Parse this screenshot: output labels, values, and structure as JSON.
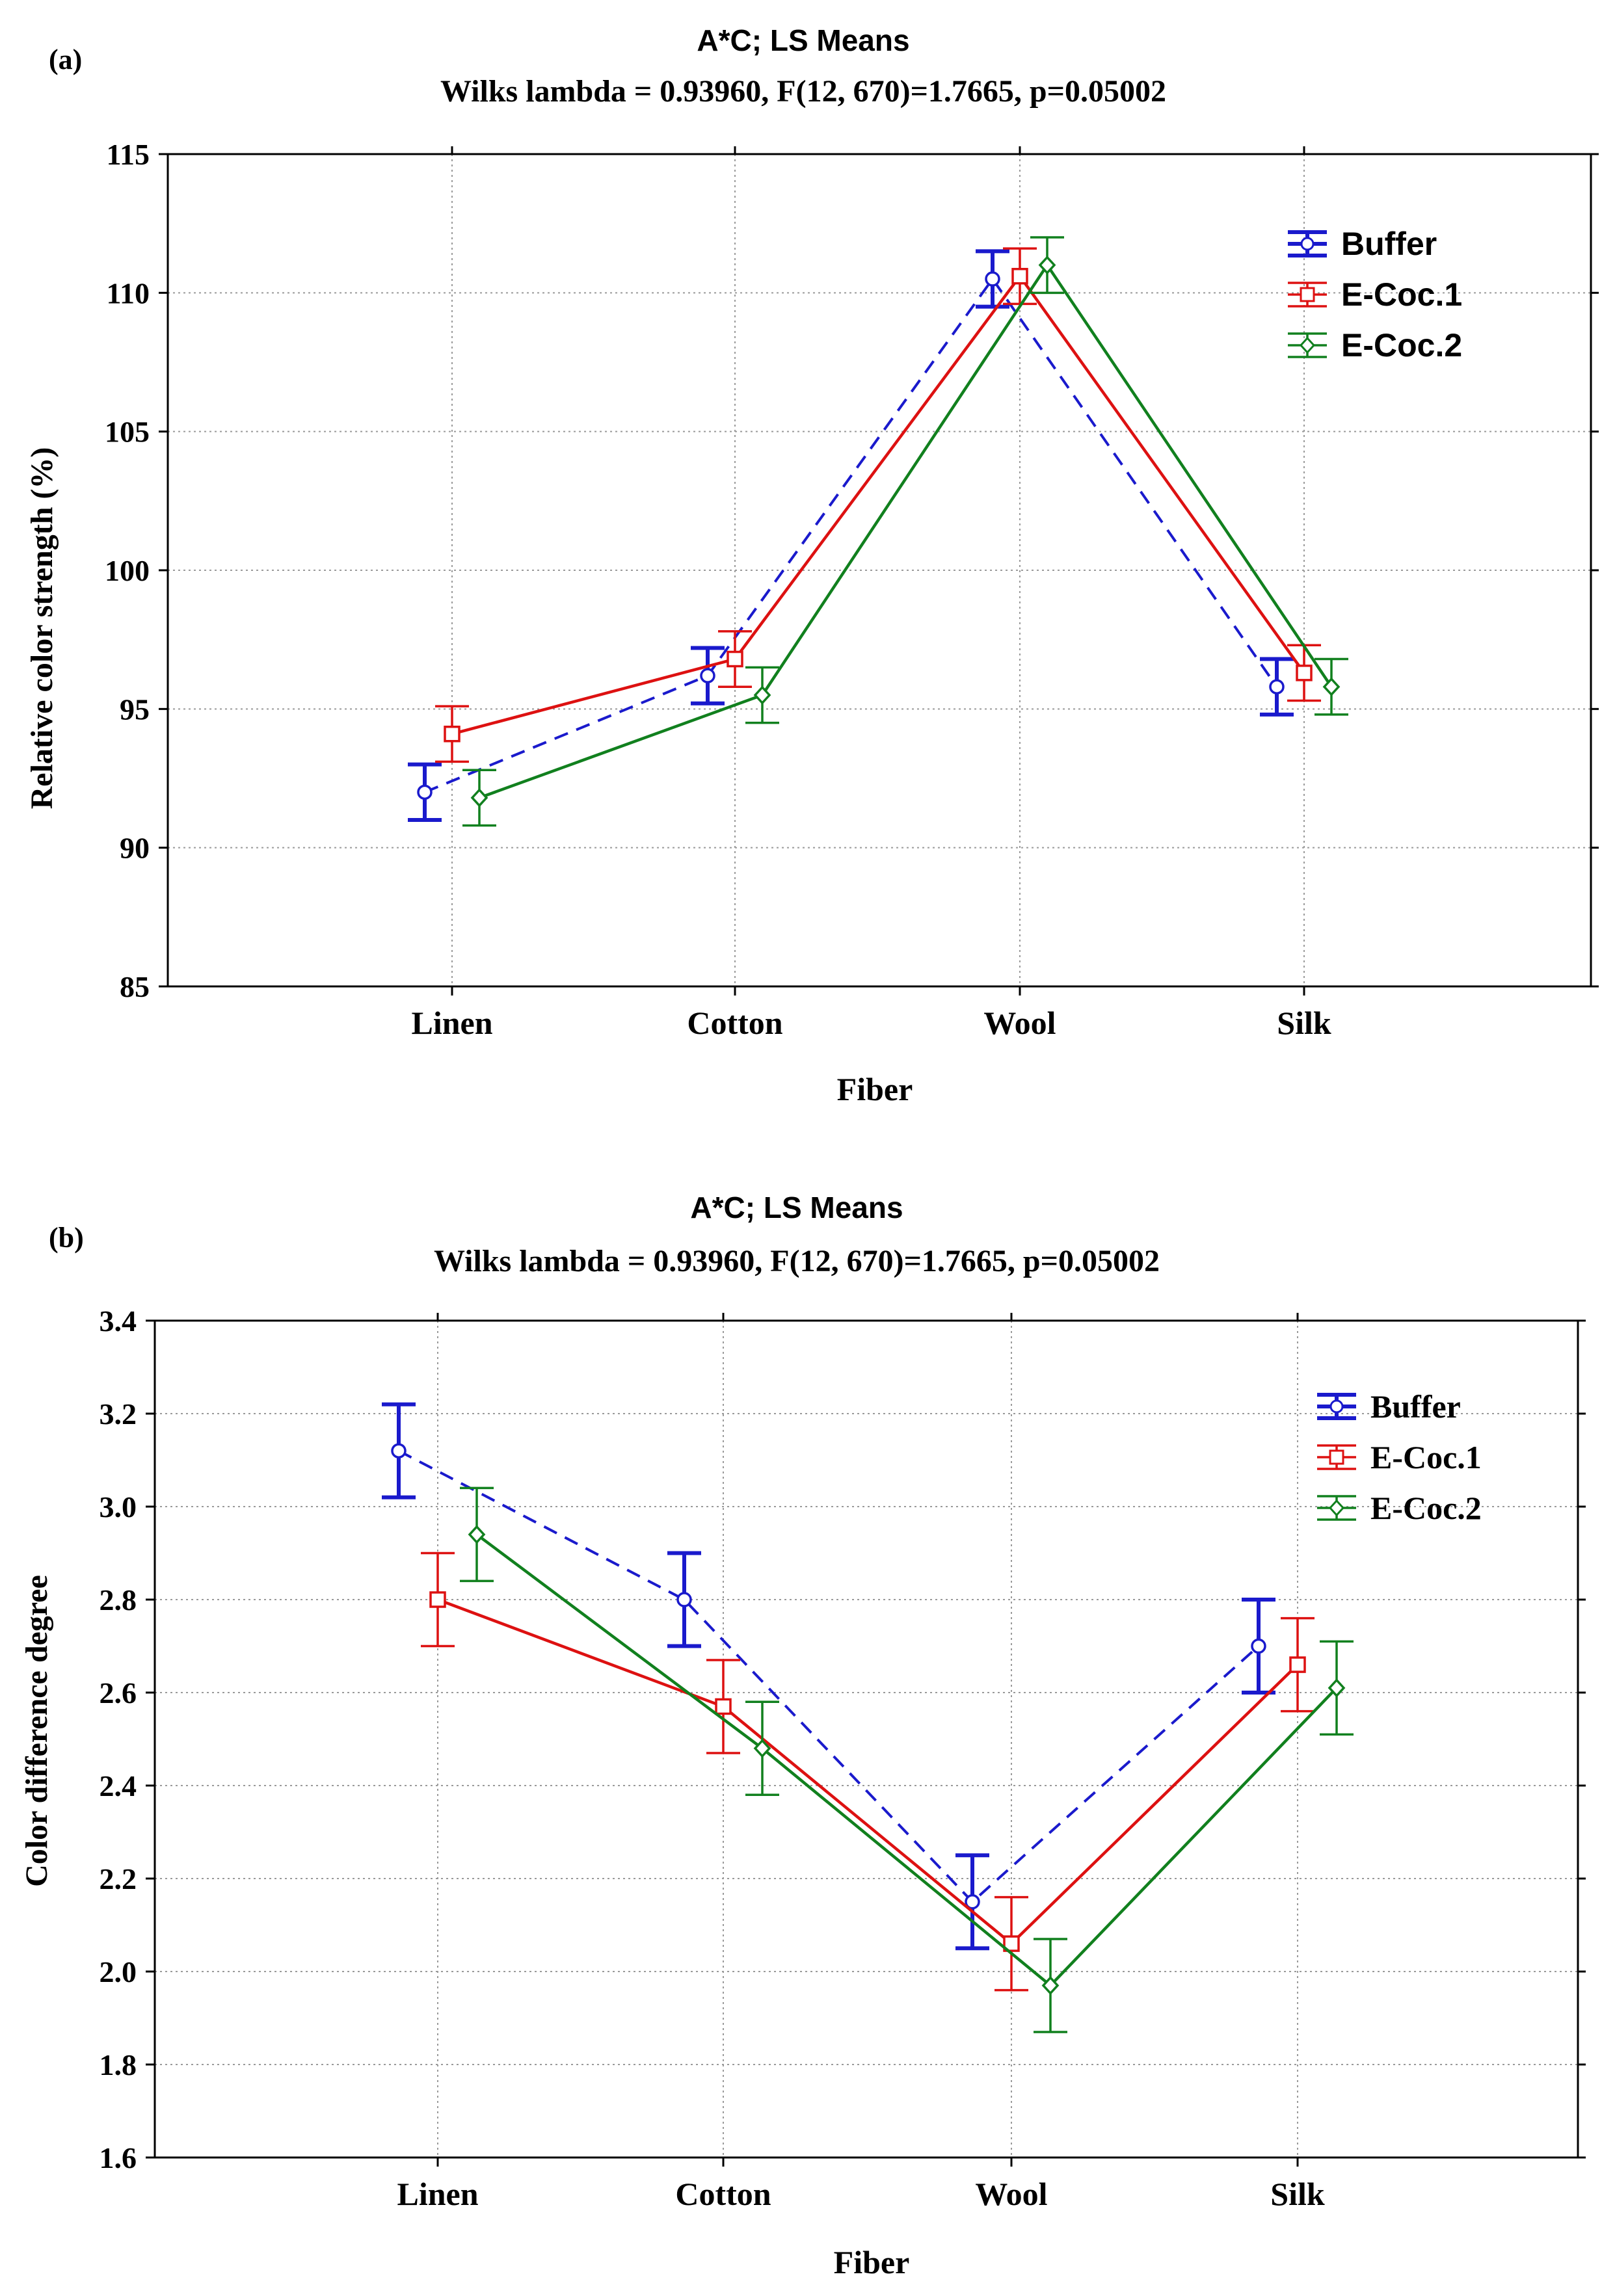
{
  "chart_data": [
    {
      "type": "line",
      "panel_label": "(a)",
      "title": "A*C; LS Means",
      "subtitle": "Wilks lambda = 0.93960, F(12, 670)=1.7665, p=0.05002",
      "xlabel": "Fiber",
      "ylabel": "Relative color strength (%)",
      "categories": [
        "Linen",
        "Cotton",
        "Wool",
        "Silk"
      ],
      "ylim": [
        85,
        115
      ],
      "yticks": [
        "85",
        "90",
        "95",
        "100",
        "105",
        "110",
        "115"
      ],
      "grid": true,
      "legend_position": "top-right",
      "series": [
        {
          "name": "Buffer",
          "color": "#1a1acc",
          "dashed": true,
          "values": [
            92.0,
            96.2,
            110.5,
            95.8
          ],
          "errors": [
            1.0,
            1.0,
            1.0,
            1.0
          ]
        },
        {
          "name": "E-Coc.1",
          "color": "#dd1111",
          "dashed": false,
          "values": [
            94.1,
            96.8,
            110.6,
            96.3
          ],
          "errors": [
            1.0,
            1.0,
            1.0,
            1.0
          ]
        },
        {
          "name": "E-Coc.2",
          "color": "#11801e",
          "dashed": false,
          "values": [
            91.8,
            95.5,
            111.0,
            95.8
          ],
          "errors": [
            1.0,
            1.0,
            1.0,
            1.0
          ]
        }
      ]
    },
    {
      "type": "line",
      "panel_label": "(b)",
      "title": "A*C; LS Means",
      "subtitle": "Wilks lambda = 0.93960, F(12, 670)=1.7665, p=0.05002",
      "xlabel": "Fiber",
      "ylabel": "Color difference degree",
      "categories": [
        "Linen",
        "Cotton",
        "Wool",
        "Silk"
      ],
      "ylim": [
        1.6,
        3.4
      ],
      "yticks": [
        "1.6",
        "1.8",
        "2.0",
        "2.2",
        "2.4",
        "2.6",
        "2.8",
        "3.0",
        "3.2",
        "3.4"
      ],
      "grid": true,
      "legend_position": "top-right",
      "series": [
        {
          "name": "Buffer",
          "color": "#1a1acc",
          "dashed": true,
          "values": [
            3.12,
            2.8,
            2.15,
            2.7
          ],
          "errors": [
            0.1,
            0.1,
            0.1,
            0.1
          ]
        },
        {
          "name": "E-Coc.1",
          "color": "#dd1111",
          "dashed": false,
          "values": [
            2.8,
            2.57,
            2.06,
            2.66
          ],
          "errors": [
            0.1,
            0.1,
            0.1,
            0.1
          ]
        },
        {
          "name": "E-Coc.2",
          "color": "#11801e",
          "dashed": false,
          "values": [
            2.94,
            2.48,
            1.97,
            2.61
          ],
          "errors": [
            0.1,
            0.1,
            0.1,
            0.1
          ]
        }
      ]
    }
  ]
}
